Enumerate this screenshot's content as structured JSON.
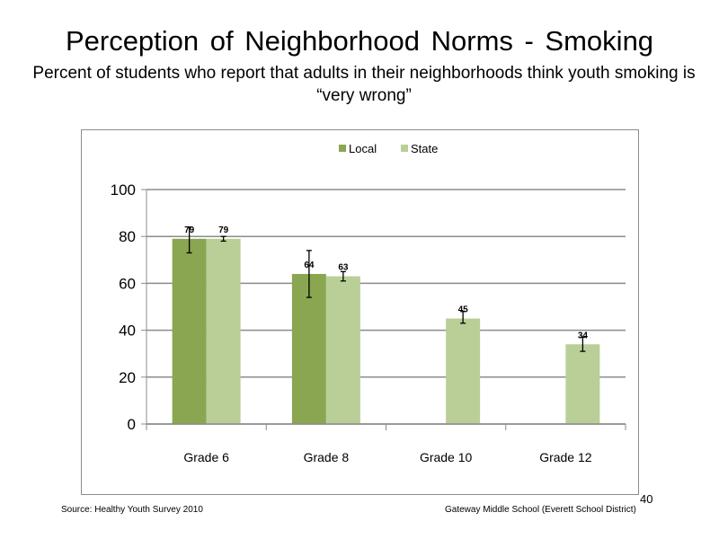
{
  "slide": {
    "title": "Perception of Neighborhood Norms - Smoking",
    "subtitle": "Percent of students who report that adults in their neighborhoods think youth smoking is “very wrong”",
    "source": "Source: Healthy Youth Survey 2010",
    "school": "Gateway Middle School (Everett School District)",
    "page_number": "40"
  },
  "chart_data": {
    "type": "bar",
    "categories": [
      "Grade 6",
      "Grade 8",
      "Grade 10",
      "Grade 12"
    ],
    "series": [
      {
        "name": "Local",
        "color": "#8aa650",
        "values": [
          79,
          64,
          null,
          null
        ],
        "labels": [
          "79",
          "64",
          null,
          null
        ],
        "error_low": [
          73,
          54,
          null,
          null
        ],
        "error_high": [
          84,
          74,
          null,
          null
        ]
      },
      {
        "name": "State",
        "color": "#b9cf97",
        "values": [
          79,
          63,
          45,
          34
        ],
        "labels": [
          "79",
          "63",
          "45",
          "34"
        ],
        "error_low": [
          78,
          61,
          43,
          31
        ],
        "error_high": [
          80,
          65,
          48,
          37
        ]
      }
    ],
    "ylim": [
      0,
      100
    ],
    "yticks": [
      "0",
      "20",
      "40",
      "60",
      "80",
      "100"
    ],
    "ytick_values": [
      0,
      20,
      40,
      60,
      80,
      100
    ],
    "grid": true,
    "legend_position": "top"
  }
}
